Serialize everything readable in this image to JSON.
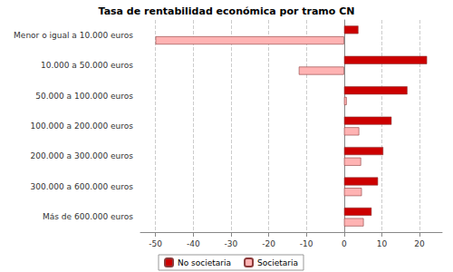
{
  "chart_data": {
    "type": "bar",
    "orientation": "horizontal",
    "title": "Tasa de rentabilidad económica por tramo CN",
    "categories": [
      "Menor o igual a 10.000 euros",
      "10.000 a 50.000 euros",
      "50.000 a 100.000 euros",
      "100.000 a 200.000 euros",
      "200.000 a 300.000 euros",
      "300.000 a 600.000 euros",
      "Más de 600.000 euros"
    ],
    "series": [
      {
        "name": "No societaria",
        "color": "#cc0000",
        "values": [
          3.8,
          22,
          16.8,
          12.6,
          10.4,
          9,
          7.3
        ]
      },
      {
        "name": "Societaria",
        "color": "#ffb3b3",
        "values": [
          -50,
          -12,
          0.7,
          4,
          4.5,
          4.7,
          5.2
        ]
      }
    ],
    "xlim": [
      -54,
      26
    ],
    "xticks": [
      -50,
      -40,
      -30,
      -20,
      -10,
      0,
      10,
      20
    ],
    "grid": true,
    "legend": "bottom"
  }
}
